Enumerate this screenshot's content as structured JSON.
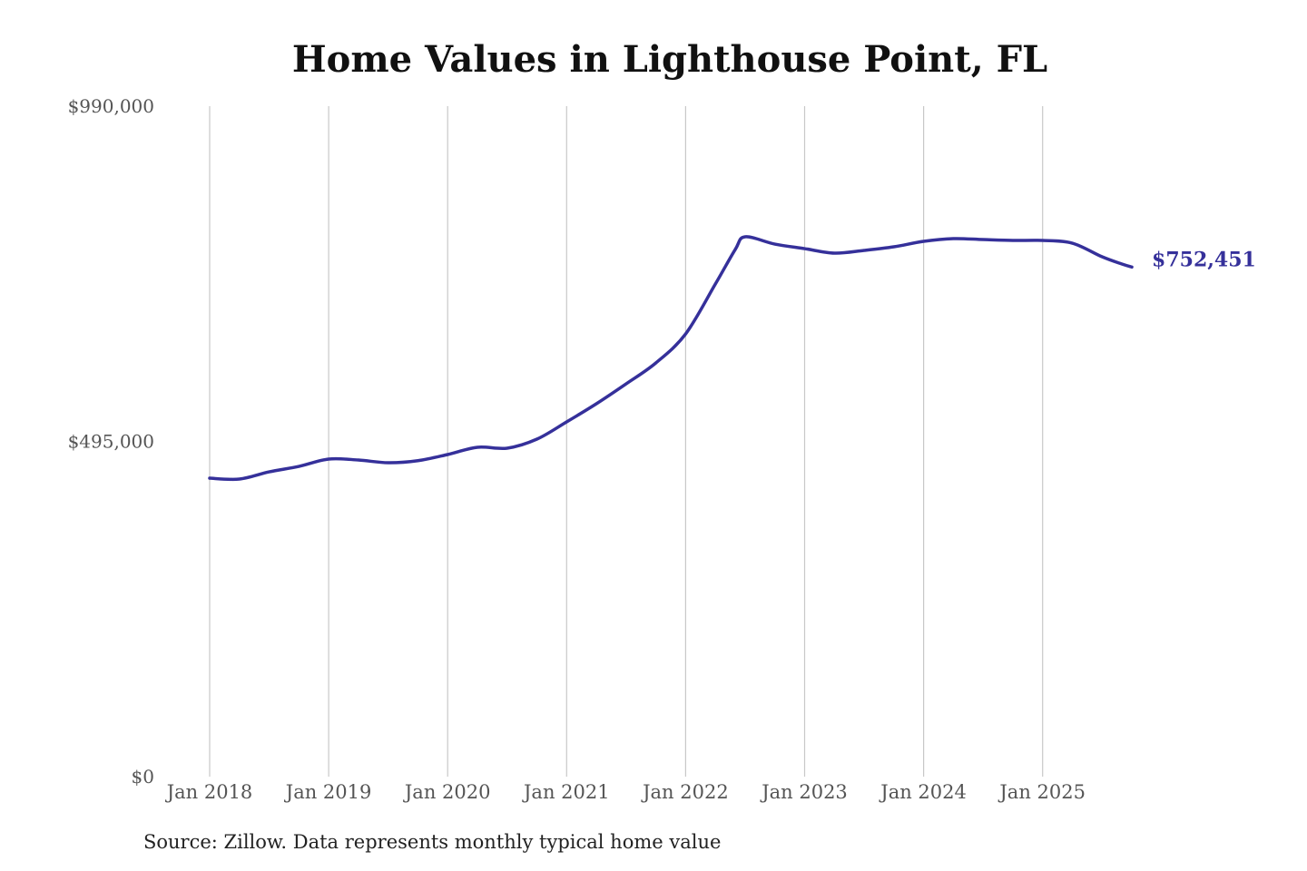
{
  "chart_data": {
    "type": "line",
    "title": "Home Values in Lighthouse Point, FL",
    "source": "Source: Zillow. Data represents monthly typical home value",
    "xlabel": "",
    "ylabel": "",
    "ylim": [
      0,
      990000
    ],
    "y_ticks": [
      0,
      495000,
      990000
    ],
    "y_tick_labels": [
      "$0",
      "$495,000",
      "$990,000"
    ],
    "x_tick_labels": [
      "Jan 2018",
      "Jan 2019",
      "Jan 2020",
      "Jan 2021",
      "Jan 2022",
      "Jan 2023",
      "Jan 2024",
      "Jan 2025"
    ],
    "x_ticks": [
      "2018-01",
      "2019-01",
      "2020-01",
      "2021-01",
      "2022-01",
      "2023-01",
      "2024-01",
      "2025-01"
    ],
    "grid": "vertical",
    "line_color": "#35309a",
    "end_label": "$752,451",
    "series": [
      {
        "x": [
          "2018-01",
          "2018-04",
          "2018-07",
          "2018-10",
          "2019-01",
          "2019-04",
          "2019-07",
          "2019-10",
          "2020-01",
          "2020-04",
          "2020-07",
          "2020-10",
          "2021-01",
          "2021-04",
          "2021-07",
          "2021-10",
          "2022-01",
          "2022-04",
          "2022-06",
          "2022-07",
          "2022-10",
          "2023-01",
          "2023-04",
          "2023-07",
          "2023-10",
          "2024-01",
          "2024-04",
          "2024-07",
          "2024-10",
          "2025-01",
          "2025-04",
          "2025-07",
          "2025-09",
          "2025-10"
        ],
        "values": [
          440700,
          439400,
          450000,
          458100,
          468900,
          467500,
          463500,
          466500,
          475600,
          486300,
          485000,
          498300,
          523800,
          550600,
          580000,
          610900,
          653700,
          727400,
          778300,
          797100,
          786300,
          779600,
          773000,
          777000,
          782300,
          790400,
          794400,
          793000,
          791700,
          791700,
          787700,
          767600,
          756900,
          752451
        ]
      }
    ]
  }
}
